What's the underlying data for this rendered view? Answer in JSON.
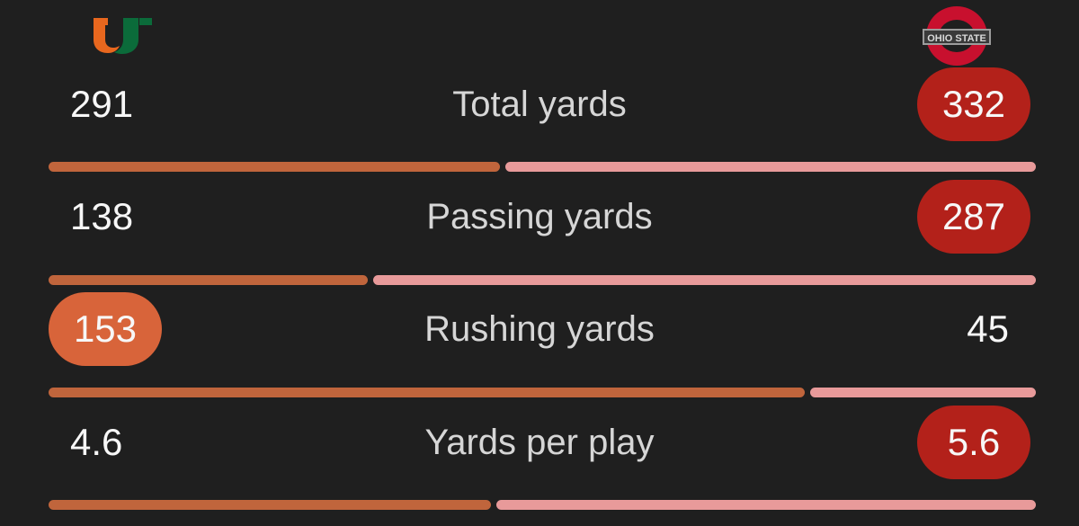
{
  "teams": {
    "away": {
      "logo_icon": "miami-u-logo-icon",
      "color": "#c0653c",
      "highlight_color": "#d8643a"
    },
    "home": {
      "logo_icon": "ohio-state-logo-icon",
      "color": "#e89a9a",
      "highlight_color": "#b3211a"
    }
  },
  "stats": [
    {
      "label": "Total yards",
      "away": "291",
      "home": "332",
      "leader": "home",
      "away_share": 0.46
    },
    {
      "label": "Passing yards",
      "away": "138",
      "home": "287",
      "leader": "home",
      "away_share": 0.325
    },
    {
      "label": "Rushing yards",
      "away": "153",
      "home": "45",
      "leader": "away",
      "away_share": 0.77
    },
    {
      "label": "Yards per play",
      "away": "4.6",
      "home": "5.6",
      "leader": "home",
      "away_share": 0.451
    }
  ]
}
